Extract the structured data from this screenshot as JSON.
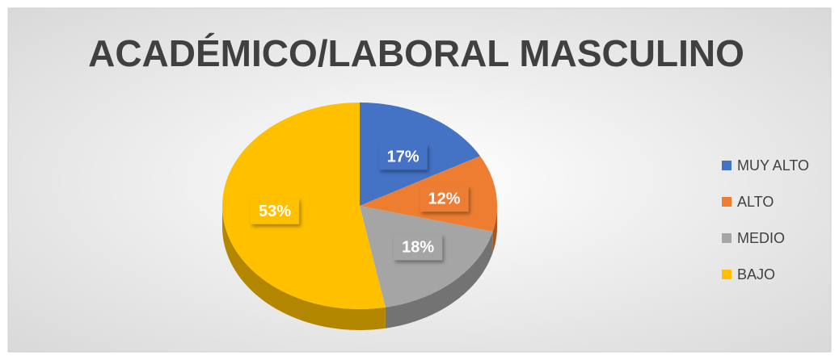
{
  "chart_data": {
    "type": "pie3d",
    "title": "ACADÉMICO/LABORAL MASCULINO",
    "categories": [
      "MUY ALTO",
      "ALTO",
      "MEDIO",
      "BAJO"
    ],
    "values": [
      17,
      12,
      18,
      53
    ],
    "value_labels": [
      "17%",
      "12%",
      "18%",
      "53%"
    ],
    "colors": [
      "#4472c4",
      "#ed7d31",
      "#a5a5a5",
      "#ffc000"
    ],
    "legend": "right"
  }
}
